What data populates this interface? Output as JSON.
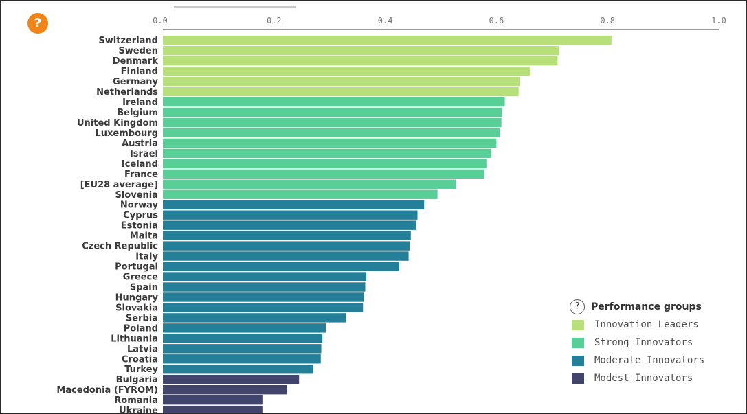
{
  "ui": {
    "help_icon": "?",
    "legend_help_icon": "?",
    "legend_title": "Performance groups"
  },
  "legend": [
    {
      "label": "Innovation Leaders",
      "color": "#b8e07a"
    },
    {
      "label": "Strong Innovators",
      "color": "#58cf96"
    },
    {
      "label": "Moderate Innovators",
      "color": "#247f98"
    },
    {
      "label": "Modest Innovators",
      "color": "#41446b"
    }
  ],
  "chart_data": {
    "type": "bar",
    "orientation": "horizontal",
    "xlim": [
      0,
      1
    ],
    "xticks": [
      "0.0",
      "0.2",
      "0.4",
      "0.6",
      "0.8",
      "1.0"
    ],
    "grid": false,
    "legend_position": "bottom-right",
    "categories": [
      "Switzerland",
      "Sweden",
      "Denmark",
      "Finland",
      "Germany",
      "Netherlands",
      "Ireland",
      "Belgium",
      "United Kingdom",
      "Luxembourg",
      "Austria",
      "Israel",
      "Iceland",
      "France",
      "[EU28 average]",
      "Slovenia",
      "Norway",
      "Cyprus",
      "Estonia",
      "Malta",
      "Czech Republic",
      "Italy",
      "Portugal",
      "Greece",
      "Spain",
      "Hungary",
      "Slovakia",
      "Serbia",
      "Poland",
      "Lithuania",
      "Latvia",
      "Croatia",
      "Turkey",
      "Bulgaria",
      "Macedonia (FYROM)",
      "Romania",
      "Ukraine"
    ],
    "values": [
      0.807,
      0.712,
      0.71,
      0.66,
      0.642,
      0.64,
      0.615,
      0.61,
      0.609,
      0.606,
      0.6,
      0.59,
      0.582,
      0.578,
      0.527,
      0.494,
      0.47,
      0.458,
      0.456,
      0.446,
      0.444,
      0.442,
      0.425,
      0.366,
      0.364,
      0.362,
      0.36,
      0.329,
      0.293,
      0.287,
      0.285,
      0.284,
      0.27,
      0.245,
      0.223,
      0.179,
      0.179
    ],
    "groups": [
      {
        "name": "Innovation Leaders",
        "start": 0,
        "end": 5,
        "color": "#b8e07a"
      },
      {
        "name": "Strong Innovators",
        "start": 6,
        "end": 15,
        "color": "#58cf96"
      },
      {
        "name": "Moderate Innovators",
        "start": 16,
        "end": 32,
        "color": "#247f98"
      },
      {
        "name": "Modest Innovators",
        "start": 33,
        "end": 36,
        "color": "#41446b"
      }
    ]
  }
}
